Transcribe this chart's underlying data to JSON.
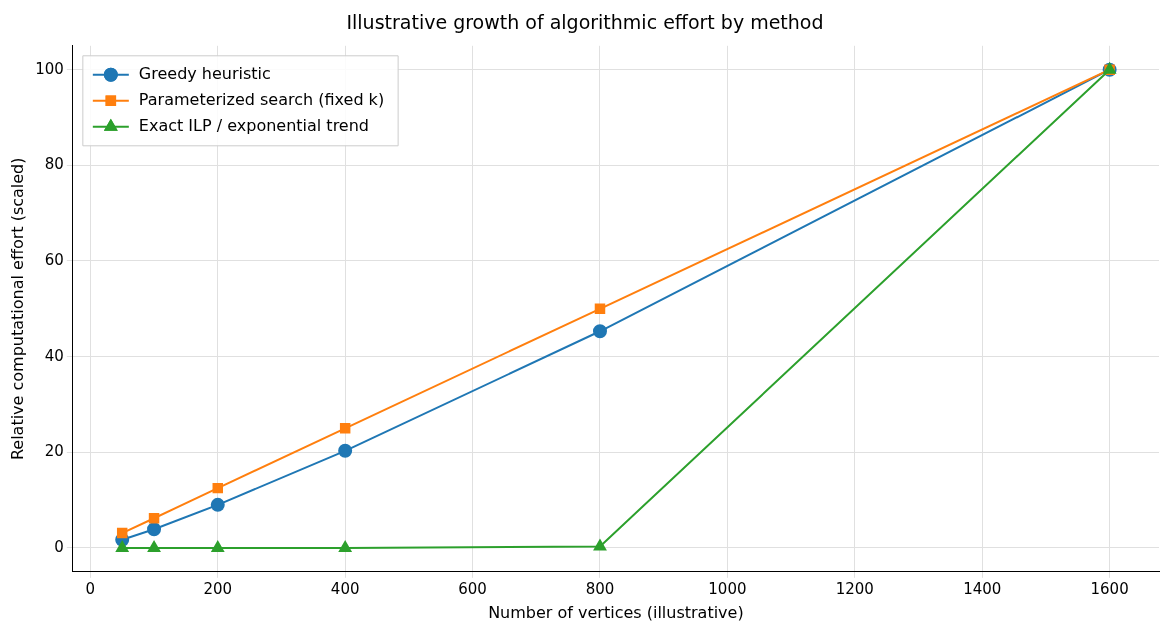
{
  "chart_data": {
    "type": "line",
    "title": "Illustrative growth of algorithmic effort by method",
    "xlabel": "Number of vertices (illustrative)",
    "ylabel": "Relative computational effort (scaled)",
    "x": [
      50,
      100,
      200,
      400,
      800,
      1600
    ],
    "series": [
      {
        "name": "Greedy heuristic",
        "color": "#1f77b4",
        "marker": "circle",
        "values": [
          1.7,
          3.9,
          9,
          20.3,
          45.3,
          100
        ]
      },
      {
        "name": "Parameterized search (fixed k)",
        "color": "#ff7f0e",
        "marker": "square",
        "values": [
          3.1,
          6.2,
          12.5,
          25,
          50,
          100
        ]
      },
      {
        "name": "Exact ILP / exponential trend",
        "color": "#2ca02c",
        "marker": "triangle",
        "values": [
          0,
          0,
          0,
          0,
          0.3,
          100
        ]
      }
    ],
    "xlim": [
      -27.5,
      1677.5
    ],
    "xticks": [
      0,
      200,
      400,
      600,
      800,
      1000,
      1200,
      1400,
      1600
    ],
    "ylim": [
      -5,
      105
    ],
    "yticks": [
      0,
      20,
      40,
      60,
      80,
      100
    ],
    "grid": true,
    "legend": "top left",
    "line_style": "solid"
  }
}
